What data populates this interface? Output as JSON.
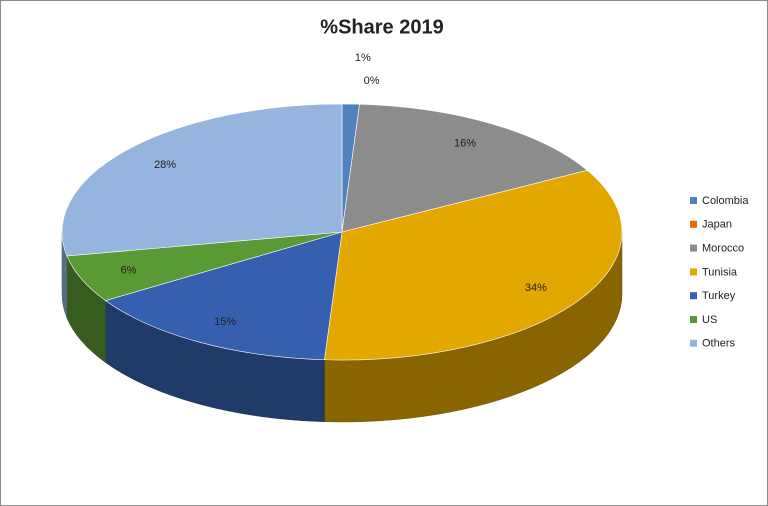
{
  "chart_data": {
    "type": "pie",
    "title": "%Share 2019",
    "categories": [
      "Colombia",
      "Japan",
      "Morocco",
      "Tunisia",
      "Turkey",
      "US",
      "Others"
    ],
    "values": [
      1,
      0,
      16,
      34,
      15,
      6,
      28
    ],
    "value_labels": [
      "1%",
      "0%",
      "16%",
      "34%",
      "15%",
      "6%",
      "28%"
    ],
    "colors": [
      "#4f81bd",
      "#e46c0a",
      "#8c8c8c",
      "#e2a800",
      "#3560b0",
      "#5a9a34",
      "#95b5de"
    ],
    "legend": "right"
  }
}
